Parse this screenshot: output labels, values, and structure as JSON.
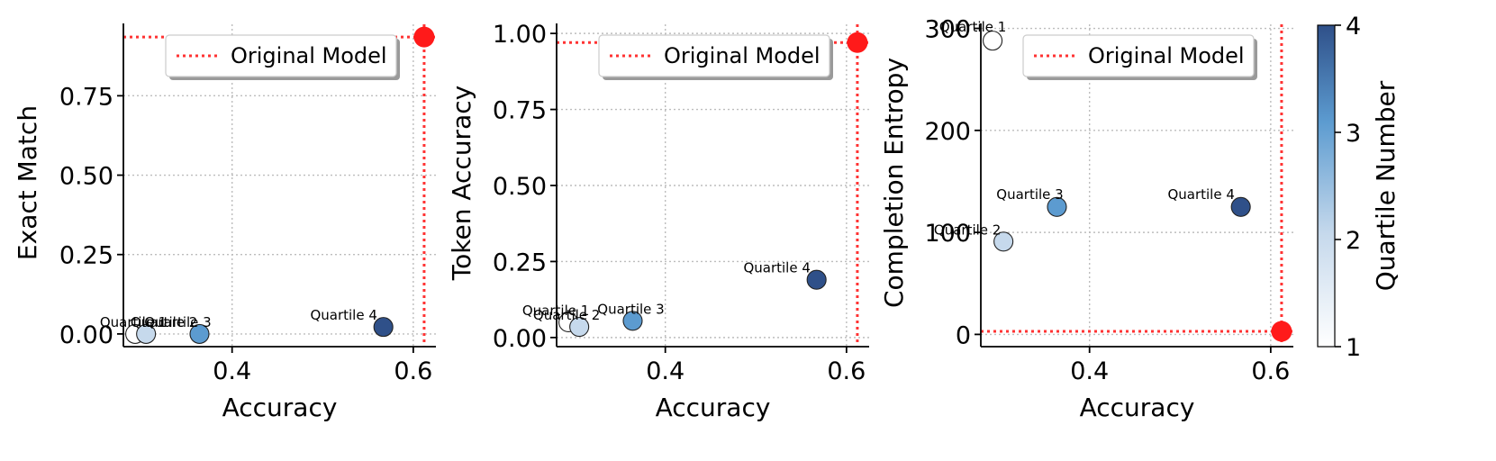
{
  "chart_data": [
    {
      "type": "scatter",
      "xlabel": "Accuracy",
      "ylabel": "Exact Match",
      "xlim": [
        0.28,
        0.625
      ],
      "ylim": [
        -0.04,
        0.975
      ],
      "xticks": [
        {
          "v": 0.4,
          "label": "0.4"
        },
        {
          "v": 0.6,
          "label": "0.6"
        }
      ],
      "yticks": [
        {
          "v": 0.0,
          "label": "0.00"
        },
        {
          "v": 0.25,
          "label": "0.25"
        },
        {
          "v": 0.5,
          "label": "0.50"
        },
        {
          "v": 0.75,
          "label": "0.75"
        }
      ],
      "grid": true,
      "legend": {
        "label": "Original Model",
        "placement": "top-right"
      },
      "original_model": {
        "x": 0.612,
        "y": 0.935
      },
      "points": [
        {
          "label": "Quartile 1",
          "x": 0.293,
          "y": 0.0,
          "quartile": 1
        },
        {
          "label": "Quartile 2",
          "x": 0.305,
          "y": 0.0,
          "quartile": 2
        },
        {
          "label": "Quartile 3",
          "x": 0.364,
          "y": 0.0,
          "quartile": 3
        },
        {
          "label": "Quartile 4",
          "x": 0.567,
          "y": 0.022,
          "quartile": 4
        }
      ]
    },
    {
      "type": "scatter",
      "xlabel": "Accuracy",
      "ylabel": "Token Accuracy",
      "xlim": [
        0.28,
        0.625
      ],
      "ylim": [
        -0.03,
        1.03
      ],
      "xticks": [
        {
          "v": 0.4,
          "label": "0.4"
        },
        {
          "v": 0.6,
          "label": "0.6"
        }
      ],
      "yticks": [
        {
          "v": 0.0,
          "label": "0.00"
        },
        {
          "v": 0.25,
          "label": "0.25"
        },
        {
          "v": 0.5,
          "label": "0.50"
        },
        {
          "v": 0.75,
          "label": "0.75"
        },
        {
          "v": 1.0,
          "label": "1.00"
        }
      ],
      "grid": true,
      "legend": {
        "label": "Original Model",
        "placement": "top-right"
      },
      "original_model": {
        "x": 0.612,
        "y": 0.97
      },
      "points": [
        {
          "label": "Quartile 1",
          "x": 0.293,
          "y": 0.05,
          "quartile": 1
        },
        {
          "label": "Quartile 2",
          "x": 0.305,
          "y": 0.035,
          "quartile": 2
        },
        {
          "label": "Quartile 3",
          "x": 0.364,
          "y": 0.055,
          "quartile": 3
        },
        {
          "label": "Quartile 4",
          "x": 0.567,
          "y": 0.19,
          "quartile": 4
        }
      ]
    },
    {
      "type": "scatter",
      "xlabel": "Accuracy",
      "ylabel": "Completion Entropy",
      "xlim": [
        0.28,
        0.625
      ],
      "ylim": [
        -12,
        304
      ],
      "xticks": [
        {
          "v": 0.4,
          "label": "0.4"
        },
        {
          "v": 0.6,
          "label": "0.6"
        }
      ],
      "yticks": [
        {
          "v": 0,
          "label": "0"
        },
        {
          "v": 100,
          "label": "100"
        },
        {
          "v": 200,
          "label": "200"
        },
        {
          "v": 300,
          "label": "300"
        }
      ],
      "grid": true,
      "legend": {
        "label": "Original Model",
        "placement": "top-right"
      },
      "original_model": {
        "x": 0.612,
        "y": 3
      },
      "points": [
        {
          "label": "Quartile 1",
          "x": 0.293,
          "y": 288,
          "quartile": 1
        },
        {
          "label": "Quartile 2",
          "x": 0.305,
          "y": 91,
          "quartile": 2
        },
        {
          "label": "Quartile 3",
          "x": 0.364,
          "y": 125,
          "quartile": 3
        },
        {
          "label": "Quartile 4",
          "x": 0.567,
          "y": 125,
          "quartile": 4
        }
      ]
    }
  ],
  "colorbar": {
    "label": "Quartile Number",
    "min": 1,
    "max": 4,
    "ticks": [
      {
        "v": 1,
        "label": "1"
      },
      {
        "v": 2,
        "label": "2"
      },
      {
        "v": 3,
        "label": "3"
      },
      {
        "v": 4,
        "label": "4"
      }
    ],
    "color_low": "#ffffff",
    "color_high": "#2f5089"
  },
  "colors": {
    "original_model": "#ff1a1a",
    "quartile_fill": [
      "#ffffff",
      "#c6d9ec",
      "#5c9bd0",
      "#2f5089"
    ]
  }
}
